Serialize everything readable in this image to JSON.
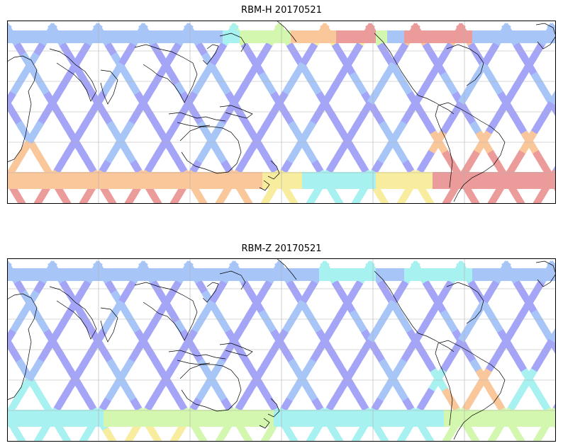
{
  "panels": [
    {
      "title": "RBM-H 20170521",
      "colormap": "jet",
      "alpha": 0.6,
      "south_band": "high",
      "south_atlantic": "high",
      "north_pacific": "high"
    },
    {
      "title": "RBM-Z 20170521",
      "colormap": "jet",
      "alpha": 0.6,
      "south_band": "medium",
      "south_atlantic": "medium",
      "north_pacific": "low"
    }
  ],
  "colors": {
    "low": "#6a6af5",
    "low2": "#6fa0f5",
    "mid": "#6de8e8",
    "midhigh": "#b6f27a",
    "high": "#f5e060",
    "higher": "#f7a25a",
    "highest": "#e05a5a",
    "grid": "#b0b0b0",
    "coast": "#000000"
  }
}
